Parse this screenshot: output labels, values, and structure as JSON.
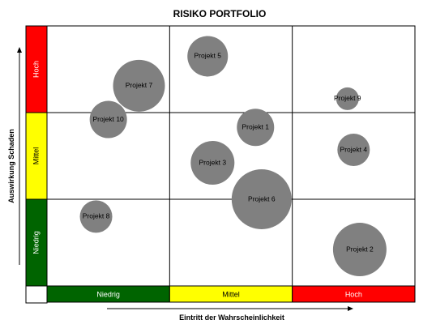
{
  "chart_data": {
    "type": "scatter",
    "title": "RISIKO PORTFOLIO",
    "xlabel": "Eintritt der Wahrscheinlichkeit",
    "ylabel": "Auswirkung Schaden",
    "x_categories": [
      {
        "label": "Niedrig",
        "color": "#006400",
        "text_color": "#ffffff"
      },
      {
        "label": "Mittel",
        "color": "#ffff00",
        "text_color": "#000000"
      },
      {
        "label": "Hoch",
        "color": "#ff0000",
        "text_color": "#ffffff"
      }
    ],
    "y_categories": [
      {
        "label": "Niedrig",
        "color": "#006400",
        "text_color": "#ffffff"
      },
      {
        "label": "Mittel",
        "color": "#ffff00",
        "text_color": "#000000"
      },
      {
        "label": "Hoch",
        "color": "#ff0000",
        "text_color": "#ffffff"
      }
    ],
    "xlim": [
      0,
      3
    ],
    "ylim": [
      0,
      3
    ],
    "grid": true,
    "bubble_color": "#808080",
    "points": [
      {
        "label": "Projekt 1",
        "x": 1.7,
        "y": 1.83,
        "size": 23
      },
      {
        "label": "Projekt 2",
        "x": 2.55,
        "y": 0.42,
        "size": 33
      },
      {
        "label": "Projekt 3",
        "x": 1.35,
        "y": 1.42,
        "size": 27
      },
      {
        "label": "Projekt 4",
        "x": 2.5,
        "y": 1.57,
        "size": 20
      },
      {
        "label": "Projekt 5",
        "x": 1.31,
        "y": 2.65,
        "size": 25
      },
      {
        "label": "Projekt 6",
        "x": 1.75,
        "y": 1.0,
        "size": 37
      },
      {
        "label": "Projekt 7",
        "x": 0.75,
        "y": 2.31,
        "size": 32
      },
      {
        "label": "Projekt 8",
        "x": 0.4,
        "y": 0.8,
        "size": 20
      },
      {
        "label": "Projekt 9",
        "x": 2.45,
        "y": 2.16,
        "size": 14
      },
      {
        "label": "Projekt 10",
        "x": 0.5,
        "y": 1.92,
        "size": 23
      }
    ]
  }
}
